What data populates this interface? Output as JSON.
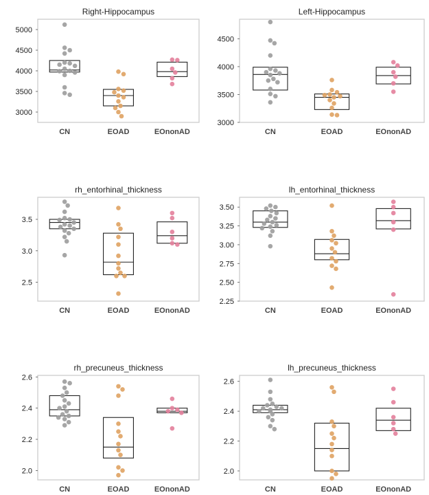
{
  "colors": {
    "CN": "#9e9e9e",
    "EOAD": "#e0a465",
    "EOnonAD": "#e4829d",
    "frame": "#cccccc",
    "box": "#222222"
  },
  "chart_data": [
    {
      "type": "box+swarm",
      "title": "Right-Hippocampus",
      "categories": [
        "CN",
        "EOAD",
        "EOnonAD"
      ],
      "ylim": [
        2750,
        5250
      ],
      "yticks": [
        3000,
        3500,
        4000,
        4500,
        5000
      ],
      "ytick_labels": [
        "3000",
        "3500",
        "4000",
        "4500",
        "5000"
      ],
      "grid": false,
      "series": [
        {
          "category": "CN",
          "values": [
            5120,
            4560,
            4500,
            4420,
            4200,
            4180,
            4150,
            4120,
            4050,
            4000,
            3990,
            3960,
            3900,
            3600,
            3460,
            3420
          ],
          "box": {
            "q1": 3970,
            "median": 4020,
            "q3": 4250
          }
        },
        {
          "category": "EOAD",
          "values": [
            3980,
            3920,
            3560,
            3520,
            3480,
            3400,
            3360,
            3260,
            3150,
            3100,
            3000,
            2900
          ],
          "box": {
            "q1": 3150,
            "median": 3400,
            "q3": 3550
          }
        },
        {
          "category": "EOnonAD",
          "values": [
            4270,
            4260,
            4050,
            3960,
            3820,
            3680
          ],
          "box": {
            "q1": 3860,
            "median": 3980,
            "q3": 4210
          }
        }
      ]
    },
    {
      "type": "box+swarm",
      "title": "Left-Hippocampus",
      "categories": [
        "CN",
        "EOAD",
        "EOnonAD"
      ],
      "ylim": [
        3000,
        4850
      ],
      "yticks": [
        3000,
        3500,
        4000,
        4500
      ],
      "ytick_labels": [
        "3000",
        "3500",
        "4000",
        "4500"
      ],
      "grid": false,
      "series": [
        {
          "category": "CN",
          "values": [
            4800,
            4470,
            4420,
            4200,
            3960,
            3930,
            3900,
            3880,
            3850,
            3780,
            3750,
            3720,
            3600,
            3510,
            3470,
            3360
          ],
          "box": {
            "q1": 3580,
            "median": 3860,
            "q3": 3990
          }
        },
        {
          "category": "EOAD",
          "values": [
            3760,
            3580,
            3540,
            3500,
            3490,
            3470,
            3450,
            3400,
            3340,
            3260,
            3140,
            3130
          ],
          "box": {
            "q1": 3230,
            "median": 3450,
            "q3": 3510
          }
        },
        {
          "category": "EOnonAD",
          "values": [
            4080,
            4020,
            3900,
            3820,
            3700,
            3550
          ],
          "box": {
            "q1": 3690,
            "median": 3840,
            "q3": 3990
          }
        }
      ]
    },
    {
      "type": "box+swarm",
      "title": "rh_entorhinal_thickness",
      "categories": [
        "CN",
        "EOAD",
        "EOnonAD"
      ],
      "ylim": [
        2.2,
        3.85
      ],
      "yticks": [
        2.5,
        3.0,
        3.5
      ],
      "ytick_labels": [
        "2.5",
        "3.0",
        "3.5"
      ],
      "grid": false,
      "series": [
        {
          "category": "CN",
          "values": [
            3.78,
            3.72,
            3.62,
            3.52,
            3.5,
            3.49,
            3.45,
            3.42,
            3.4,
            3.38,
            3.35,
            3.32,
            3.28,
            3.22,
            3.15,
            2.93
          ],
          "box": {
            "q1": 3.35,
            "median": 3.45,
            "q3": 3.5
          }
        },
        {
          "category": "EOAD",
          "values": [
            3.68,
            3.42,
            3.35,
            3.22,
            3.1,
            2.92,
            2.8,
            2.72,
            2.65,
            2.6,
            2.6,
            2.32
          ],
          "box": {
            "q1": 2.62,
            "median": 2.82,
            "q3": 3.28
          }
        },
        {
          "category": "EOnonAD",
          "values": [
            3.6,
            3.52,
            3.3,
            3.2,
            3.12,
            3.1
          ],
          "box": {
            "q1": 3.12,
            "median": 3.24,
            "q3": 3.46
          }
        }
      ]
    },
    {
      "type": "box+swarm",
      "title": "lh_entorhinal_thickness",
      "categories": [
        "CN",
        "EOAD",
        "EOnonAD"
      ],
      "ylim": [
        2.25,
        3.63
      ],
      "yticks": [
        2.25,
        2.5,
        2.75,
        3.0,
        3.25,
        3.5
      ],
      "ytick_labels": [
        "2.25",
        "2.50",
        "2.75",
        "3.00",
        "3.25",
        "3.50"
      ],
      "grid": false,
      "series": [
        {
          "category": "CN",
          "values": [
            3.52,
            3.5,
            3.48,
            3.45,
            3.42,
            3.38,
            3.35,
            3.33,
            3.3,
            3.28,
            3.26,
            3.24,
            3.22,
            3.18,
            3.12,
            2.98
          ],
          "box": {
            "q1": 3.23,
            "median": 3.3,
            "q3": 3.45
          }
        },
        {
          "category": "EOAD",
          "values": [
            3.52,
            3.18,
            3.12,
            3.06,
            3.02,
            2.95,
            2.9,
            2.82,
            2.78,
            2.72,
            2.68,
            2.43
          ],
          "box": {
            "q1": 2.8,
            "median": 2.88,
            "q3": 3.07
          }
        },
        {
          "category": "EOnonAD",
          "values": [
            3.57,
            3.5,
            3.42,
            3.3,
            3.2,
            2.34
          ],
          "box": {
            "q1": 3.21,
            "median": 3.32,
            "q3": 3.48
          }
        }
      ]
    },
    {
      "type": "box+swarm",
      "title": "rh_precuneus_thickness",
      "categories": [
        "CN",
        "EOAD",
        "EOnonAD"
      ],
      "ylim": [
        1.94,
        2.61
      ],
      "yticks": [
        2.0,
        2.2,
        2.4,
        2.6
      ],
      "ytick_labels": [
        "2.0",
        "2.2",
        "2.4",
        "2.6"
      ],
      "grid": false,
      "series": [
        {
          "category": "CN",
          "values": [
            2.57,
            2.56,
            2.53,
            2.5,
            2.48,
            2.45,
            2.43,
            2.41,
            2.4,
            2.38,
            2.36,
            2.35,
            2.34,
            2.33,
            2.31,
            2.29
          ],
          "box": {
            "q1": 2.35,
            "median": 2.39,
            "q3": 2.48
          }
        },
        {
          "category": "EOAD",
          "values": [
            2.54,
            2.52,
            2.48,
            2.3,
            2.25,
            2.22,
            2.17,
            2.13,
            2.1,
            2.02,
            2.0,
            1.97
          ],
          "box": {
            "q1": 2.08,
            "median": 2.15,
            "q3": 2.34
          }
        },
        {
          "category": "EOnonAD",
          "values": [
            2.46,
            2.4,
            2.39,
            2.38,
            2.37,
            2.27
          ],
          "box": {
            "q1": 2.37,
            "median": 2.38,
            "q3": 2.4
          }
        }
      ]
    },
    {
      "type": "box+swarm",
      "title": "lh_precuneus_thickness",
      "categories": [
        "CN",
        "EOAD",
        "EOnonAD"
      ],
      "ylim": [
        1.94,
        2.64
      ],
      "yticks": [
        2.0,
        2.2,
        2.4,
        2.6
      ],
      "ytick_labels": [
        "2.0",
        "2.2",
        "2.4",
        "2.6"
      ],
      "grid": false,
      "series": [
        {
          "category": "CN",
          "values": [
            2.61,
            2.53,
            2.48,
            2.45,
            2.44,
            2.43,
            2.42,
            2.42,
            2.41,
            2.4,
            2.4,
            2.38,
            2.36,
            2.34,
            2.3,
            2.28
          ],
          "box": {
            "q1": 2.39,
            "median": 2.41,
            "q3": 2.44
          }
        },
        {
          "category": "EOAD",
          "values": [
            2.56,
            2.53,
            2.33,
            2.3,
            2.25,
            2.22,
            2.18,
            2.14,
            2.1,
            2.0,
            1.98,
            1.95
          ],
          "box": {
            "q1": 2.0,
            "median": 2.15,
            "q3": 2.32
          }
        },
        {
          "category": "EOnonAD",
          "values": [
            2.55,
            2.46,
            2.36,
            2.32,
            2.28,
            2.25
          ],
          "box": {
            "q1": 2.27,
            "median": 2.34,
            "q3": 2.42
          }
        }
      ]
    }
  ]
}
